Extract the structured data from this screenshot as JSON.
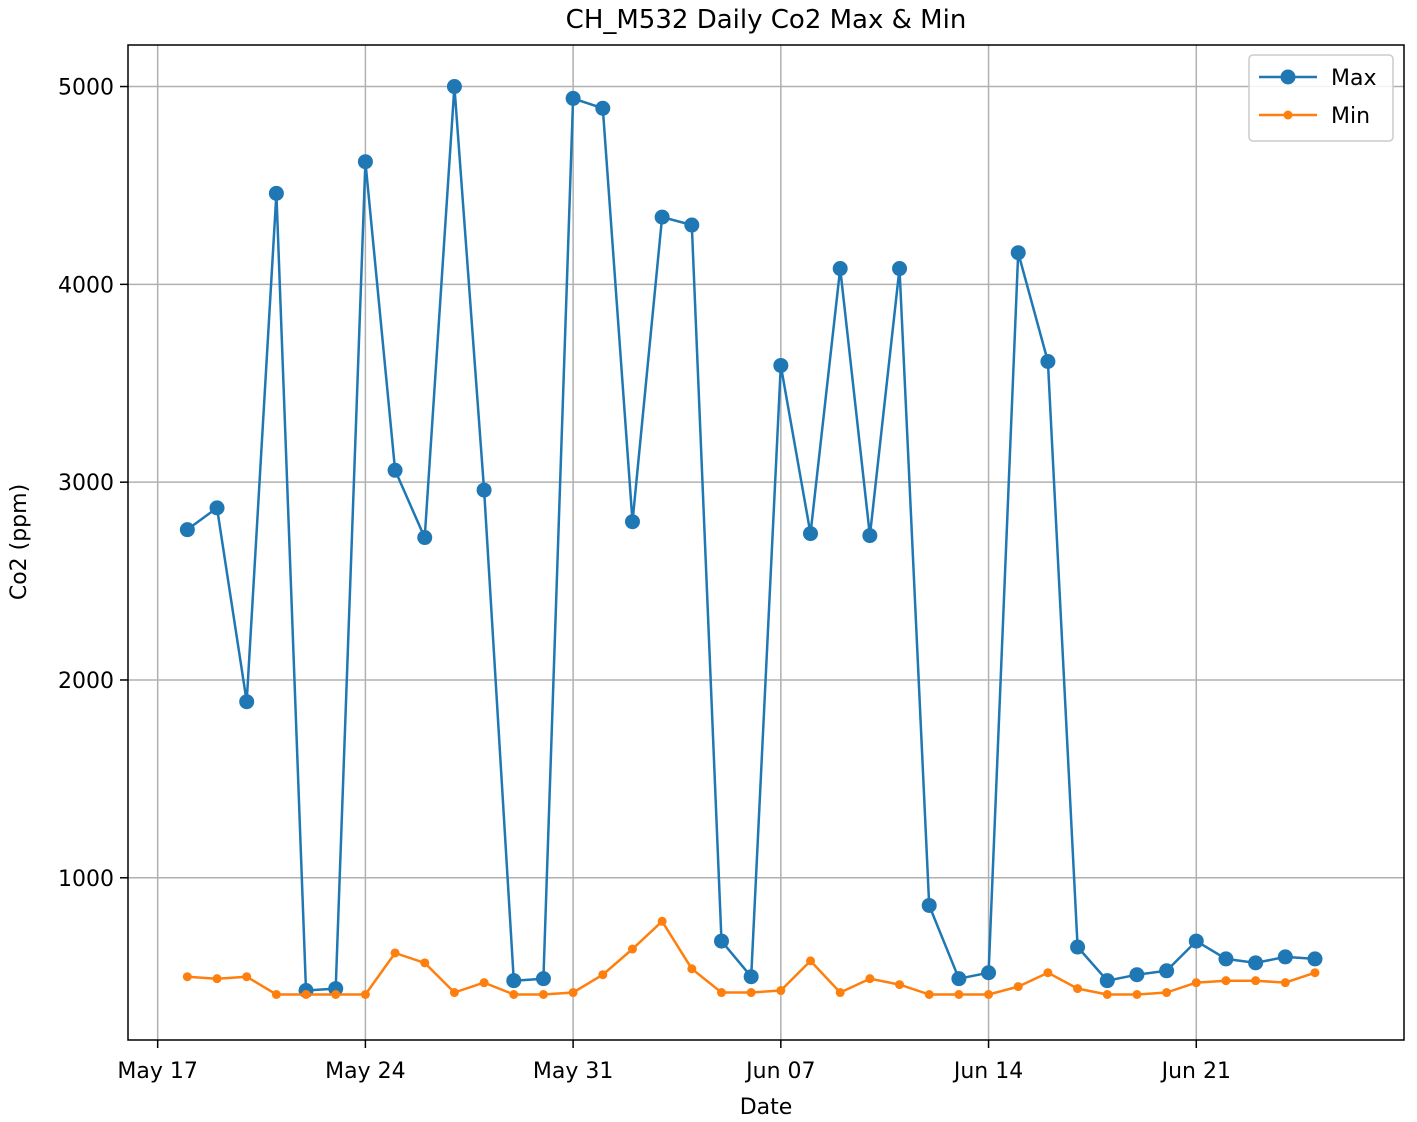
{
  "chart_data": {
    "type": "line",
    "title": "CH_M532 Daily Co2 Max & Min",
    "xlabel": "Date",
    "ylabel": "Co2 (ppm)",
    "x_tick_labels": [
      "May 17",
      "May 24",
      "May 31",
      "Jun 07",
      "Jun 14",
      "Jun 21"
    ],
    "y_ticks": [
      1000,
      2000,
      3000,
      4000,
      5000
    ],
    "ylim": [
      180,
      5210
    ],
    "xlim": [
      "2020-05-16",
      "2020-06-28"
    ],
    "grid": true,
    "legend_position": "top-right",
    "x": [
      "2020-05-18",
      "2020-05-19",
      "2020-05-20",
      "2020-05-21",
      "2020-05-22",
      "2020-05-23",
      "2020-05-24",
      "2020-05-25",
      "2020-05-26",
      "2020-05-27",
      "2020-05-28",
      "2020-05-29",
      "2020-05-30",
      "2020-05-31",
      "2020-06-01",
      "2020-06-02",
      "2020-06-03",
      "2020-06-04",
      "2020-06-05",
      "2020-06-06",
      "2020-06-07",
      "2020-06-08",
      "2020-06-09",
      "2020-06-10",
      "2020-06-11",
      "2020-06-12",
      "2020-06-13",
      "2020-06-14",
      "2020-06-15",
      "2020-06-16",
      "2020-06-17",
      "2020-06-18",
      "2020-06-19",
      "2020-06-20",
      "2020-06-21",
      "2020-06-22",
      "2020-06-23",
      "2020-06-24",
      "2020-06-25"
    ],
    "series": [
      {
        "name": "Max",
        "color": "#1f77b4",
        "marker": "large",
        "values": [
          2760,
          2870,
          1890,
          4460,
          430,
          440,
          4620,
          3060,
          2720,
          5000,
          2960,
          480,
          490,
          4940,
          4890,
          2800,
          4340,
          4300,
          680,
          500,
          3590,
          2740,
          4080,
          2730,
          4080,
          860,
          490,
          520,
          4160,
          3610,
          650,
          480,
          510,
          530,
          680,
          590,
          570,
          600,
          590
        ]
      },
      {
        "name": "Min",
        "color": "#ff7f0e",
        "marker": "small",
        "values": [
          500,
          490,
          500,
          410,
          410,
          410,
          410,
          620,
          570,
          420,
          470,
          410,
          410,
          420,
          510,
          640,
          780,
          540,
          420,
          420,
          430,
          580,
          420,
          490,
          460,
          410,
          410,
          410,
          450,
          520,
          440,
          410,
          410,
          420,
          470,
          480,
          480,
          470,
          520
        ]
      }
    ]
  }
}
